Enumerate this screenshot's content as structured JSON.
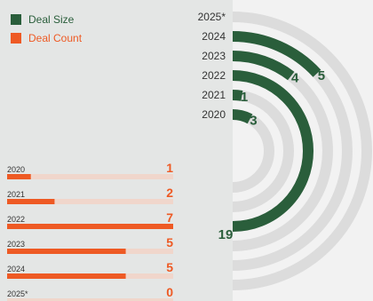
{
  "colors": {
    "left_panel_bg": "#e4e6e5",
    "right_bg": "#f2f2f2",
    "deal_size": "#2a5e3b",
    "deal_count": "#ee5a24",
    "bar_track": "#f0d6cb",
    "ring_track": "#dcdcdc",
    "year_text": "#333333",
    "legend_size_text": "#2a5e3b",
    "legend_count_text": "#ee5a24"
  },
  "legend": [
    {
      "key": "deal_size",
      "label": "Deal Size"
    },
    {
      "key": "deal_count",
      "label": "Deal Count"
    }
  ],
  "chart_data": [
    {
      "type": "bar",
      "series_key": "deal_count",
      "categories": [
        "2020",
        "2021",
        "2022",
        "2023",
        "2024",
        "2025*"
      ],
      "values": [
        1,
        2,
        7,
        5,
        5,
        0
      ],
      "max": 7
    },
    {
      "type": "radial-bar",
      "series_key": "deal_size",
      "categories": [
        "2025*",
        "2024",
        "2023",
        "2022",
        "2021",
        "2020"
      ],
      "values": [
        null,
        5,
        4,
        19,
        1,
        3
      ],
      "value_labels": [
        "",
        "5",
        "4",
        "19",
        "1",
        "3"
      ],
      "max": 19
    }
  ]
}
